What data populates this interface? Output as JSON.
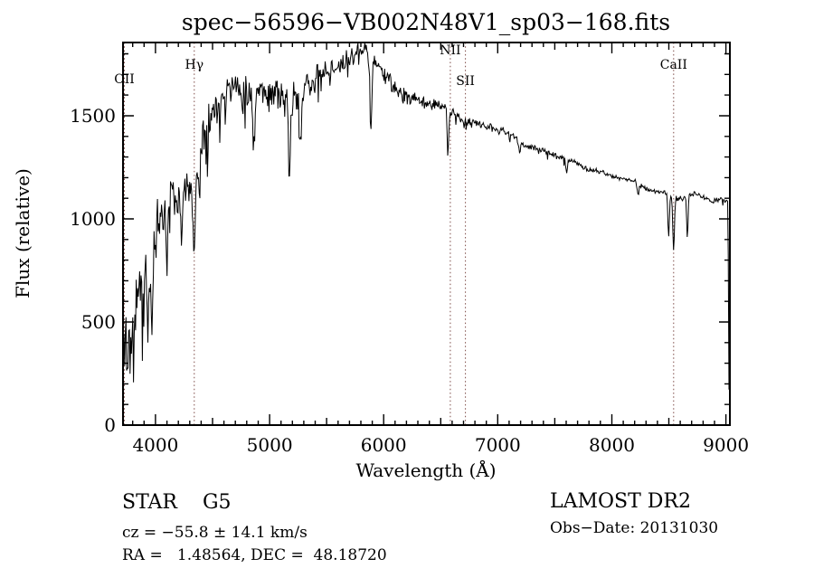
{
  "page": {
    "background": "#ffffff"
  },
  "chart_data": {
    "type": "line",
    "title": "spec−56596−VB002N48V1_sp03−168.fits",
    "xlabel": "Wavelength (Å)",
    "ylabel": "Flux (relative)",
    "xlim": [
      3715,
      9035
    ],
    "ylim": [
      0,
      1855
    ],
    "x_major_ticks": [
      4000,
      5000,
      6000,
      7000,
      8000,
      9000
    ],
    "x_minor_step": 100,
    "y_major_ticks": [
      0,
      500,
      1000,
      1500
    ],
    "y_minor_step": 100,
    "grid": false,
    "trace_color": "#000000",
    "marker_line_color": "#7d4b47",
    "spectral_lines": [
      {
        "label": "OII",
        "wavelength": 3727,
        "label_y": 92
      },
      {
        "label": "Hγ",
        "wavelength": 4340,
        "label_y": 76
      },
      {
        "label": "NII",
        "wavelength": 6584,
        "label_y": 60
      },
      {
        "label": "SII",
        "wavelength": 6717,
        "label_y": 94
      },
      {
        "label": "CaII",
        "wavelength": 8542,
        "label_y": 76
      }
    ],
    "series": [
      {
        "name": "flux",
        "sample_step": 6,
        "noise_seed": 11,
        "continuum_points": [
          [
            3715,
            400
          ],
          [
            3725,
            330
          ],
          [
            3740,
            520
          ],
          [
            3755,
            300
          ],
          [
            3770,
            450
          ],
          [
            3790,
            320
          ],
          [
            3810,
            420
          ],
          [
            3835,
            600
          ],
          [
            3860,
            700
          ],
          [
            3885,
            560
          ],
          [
            3910,
            750
          ],
          [
            3935,
            800
          ],
          [
            3960,
            780
          ],
          [
            3985,
            900
          ],
          [
            4010,
            950
          ],
          [
            4050,
            1020
          ],
          [
            4100,
            1070
          ],
          [
            4150,
            1120
          ],
          [
            4200,
            1090
          ],
          [
            4250,
            1110
          ],
          [
            4300,
            1130
          ],
          [
            4360,
            1260
          ],
          [
            4420,
            1420
          ],
          [
            4480,
            1500
          ],
          [
            4550,
            1560
          ],
          [
            4620,
            1620
          ],
          [
            4700,
            1650
          ],
          [
            4780,
            1610
          ],
          [
            4860,
            1640
          ],
          [
            4940,
            1630
          ],
          [
            5000,
            1600
          ],
          [
            5060,
            1630
          ],
          [
            5120,
            1560
          ],
          [
            5180,
            1590
          ],
          [
            5240,
            1570
          ],
          [
            5300,
            1640
          ],
          [
            5360,
            1660
          ],
          [
            5420,
            1680
          ],
          [
            5500,
            1700
          ],
          [
            5580,
            1730
          ],
          [
            5660,
            1760
          ],
          [
            5740,
            1790
          ],
          [
            5820,
            1810
          ],
          [
            5880,
            1830
          ],
          [
            5920,
            1780
          ],
          [
            5960,
            1730
          ],
          [
            6000,
            1700
          ],
          [
            6080,
            1650
          ],
          [
            6160,
            1610
          ],
          [
            6240,
            1590
          ],
          [
            6320,
            1570
          ],
          [
            6400,
            1555
          ],
          [
            6480,
            1545
          ],
          [
            6560,
            1530
          ],
          [
            6640,
            1500
          ],
          [
            6720,
            1480
          ],
          [
            6800,
            1465
          ],
          [
            6880,
            1450
          ],
          [
            6960,
            1435
          ],
          [
            7040,
            1420
          ],
          [
            7120,
            1400
          ],
          [
            7200,
            1380
          ],
          [
            7280,
            1360
          ],
          [
            7360,
            1340
          ],
          [
            7440,
            1320
          ],
          [
            7520,
            1300
          ],
          [
            7600,
            1285
          ],
          [
            7680,
            1270
          ],
          [
            7760,
            1255
          ],
          [
            7840,
            1240
          ],
          [
            7920,
            1225
          ],
          [
            8000,
            1210
          ],
          [
            8080,
            1195
          ],
          [
            8160,
            1180
          ],
          [
            8240,
            1165
          ],
          [
            8320,
            1150
          ],
          [
            8400,
            1135
          ],
          [
            8480,
            1120
          ],
          [
            8560,
            1105
          ],
          [
            8640,
            1100
          ],
          [
            8720,
            1110
          ],
          [
            8800,
            1100
          ],
          [
            8880,
            1095
          ],
          [
            8960,
            1100
          ],
          [
            9015,
            1085
          ],
          [
            9020,
            1000
          ],
          [
            9024,
            300
          ],
          [
            9030,
            35
          ]
        ],
        "absorption_features": [
          {
            "center": 3934,
            "depth": 360,
            "width": 9
          },
          {
            "center": 3969,
            "depth": 320,
            "width": 8
          },
          {
            "center": 4101,
            "depth": 280,
            "width": 9
          },
          {
            "center": 4227,
            "depth": 170,
            "width": 7
          },
          {
            "center": 4340,
            "depth": 430,
            "width": 9
          },
          {
            "center": 4383,
            "depth": 200,
            "width": 7
          },
          {
            "center": 4861,
            "depth": 320,
            "width": 9
          },
          {
            "center": 5175,
            "depth": 380,
            "width": 9
          },
          {
            "center": 5270,
            "depth": 230,
            "width": 8
          },
          {
            "center": 5890,
            "depth": 380,
            "width": 8
          },
          {
            "center": 6563,
            "depth": 230,
            "width": 7
          },
          {
            "center": 7190,
            "depth": 60,
            "width": 8
          },
          {
            "center": 7605,
            "depth": 70,
            "width": 7
          },
          {
            "center": 8230,
            "depth": 60,
            "width": 7
          },
          {
            "center": 8498,
            "depth": 200,
            "width": 6
          },
          {
            "center": 8542,
            "depth": 260,
            "width": 7
          },
          {
            "center": 8662,
            "depth": 200,
            "width": 6
          }
        ],
        "noise_profile": [
          [
            3715,
            230
          ],
          [
            3900,
            210
          ],
          [
            4000,
            150
          ],
          [
            4200,
            130
          ],
          [
            4400,
            110
          ],
          [
            4700,
            100
          ],
          [
            5000,
            95
          ],
          [
            5300,
            90
          ],
          [
            5600,
            70
          ],
          [
            5900,
            55
          ],
          [
            6100,
            45
          ],
          [
            6400,
            35
          ],
          [
            6600,
            28
          ],
          [
            7000,
            22
          ],
          [
            7400,
            18
          ],
          [
            7800,
            14
          ],
          [
            8200,
            13
          ],
          [
            8600,
            15
          ],
          [
            9035,
            15
          ]
        ]
      }
    ]
  },
  "annotations": {
    "class_line": "STAR    G5",
    "survey": "LAMOST DR2",
    "cz_line": "cz = −55.8 ± 14.1 km/s",
    "obs_date_line": "Obs−Date: 20131030",
    "radec_line": "RA =   1.48564, DEC =  48.18720"
  }
}
